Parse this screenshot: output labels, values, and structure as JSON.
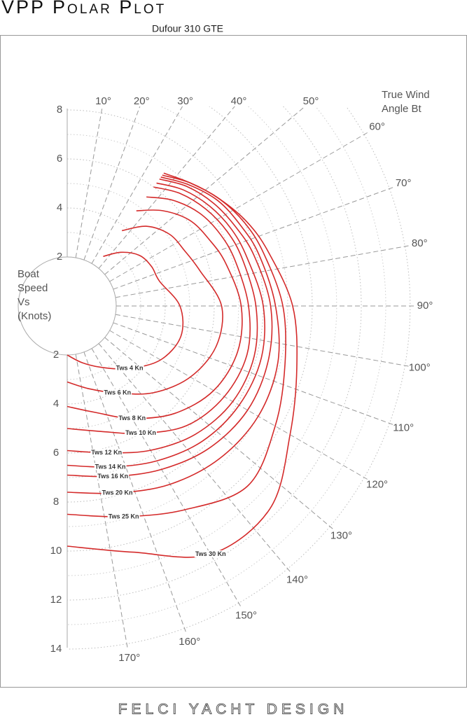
{
  "chart_data": {
    "type": "polar",
    "title": "VPP Polar Plot",
    "subtitle": "Dufour 310 GTE",
    "y_label": [
      "Boat",
      "Speed",
      "Vs",
      "(Knots)"
    ],
    "angle_label": [
      "True Wind",
      "Angle Bt"
    ],
    "footer": "FELCI YACHT DESIGN",
    "rlim": [
      0,
      14
    ],
    "rticks_up": [
      2,
      4,
      6,
      8
    ],
    "rticks_down": [
      2,
      4,
      6,
      8,
      10,
      12,
      14
    ],
    "angle_ticks": [
      {
        "value": 10,
        "label": "10°"
      },
      {
        "value": 20,
        "label": "20°"
      },
      {
        "value": 30,
        "label": "30°"
      },
      {
        "value": 40,
        "label": "40°"
      },
      {
        "value": 50,
        "label": "50°"
      },
      {
        "value": 60,
        "label": "60°"
      },
      {
        "value": 70,
        "label": "70°"
      },
      {
        "value": 80,
        "label": "80°"
      },
      {
        "value": 90,
        "label": "90°"
      },
      {
        "value": 100,
        "label": "100°"
      },
      {
        "value": 110,
        "label": "110°"
      },
      {
        "value": 120,
        "label": "120°"
      },
      {
        "value": 130,
        "label": "130°"
      },
      {
        "value": 140,
        "label": "140°"
      },
      {
        "value": 150,
        "label": "150°"
      },
      {
        "value": 160,
        "label": "160°"
      },
      {
        "value": 170,
        "label": "170°"
      }
    ],
    "series": [
      {
        "name": "Tws 4 Kn",
        "color": "#d42a2a",
        "x": [
          36,
          45,
          55,
          65,
          75,
          90,
          105,
          120,
          135,
          150,
          165,
          180
        ],
        "values": [
          2.5,
          3.1,
          3.6,
          3.8,
          3.9,
          4.6,
          4.8,
          4.4,
          3.6,
          2.9,
          2.4,
          2.0
        ]
      },
      {
        "name": "Tws 6 Kn",
        "color": "#d42a2a",
        "x": [
          36,
          45,
          55,
          65,
          75,
          90,
          105,
          120,
          135,
          150,
          165,
          180
        ],
        "values": [
          3.8,
          4.6,
          5.1,
          5.3,
          5.6,
          6.3,
          6.3,
          5.8,
          5.0,
          4.1,
          3.5,
          3.1
        ]
      },
      {
        "name": "Tws 8 Kn",
        "color": "#d42a2a",
        "x": [
          36,
          45,
          55,
          65,
          75,
          90,
          105,
          120,
          135,
          150,
          165,
          180
        ],
        "values": [
          4.8,
          5.5,
          6.1,
          6.4,
          6.7,
          7.1,
          7.2,
          6.9,
          6.2,
          5.3,
          4.5,
          4.1
        ]
      },
      {
        "name": "Tws 10 Kn",
        "color": "#d42a2a",
        "x": [
          36,
          45,
          55,
          65,
          75,
          90,
          105,
          120,
          135,
          150,
          165,
          180
        ],
        "values": [
          5.5,
          6.1,
          6.6,
          6.9,
          7.1,
          7.4,
          7.6,
          7.4,
          6.9,
          6.0,
          5.3,
          5.0
        ]
      },
      {
        "name": "Tws 12 Kn",
        "color": "#d42a2a",
        "x": [
          36,
          45,
          55,
          65,
          75,
          90,
          105,
          120,
          135,
          150,
          165,
          180
        ],
        "values": [
          6.0,
          6.5,
          6.9,
          7.2,
          7.4,
          7.7,
          7.9,
          7.8,
          7.4,
          6.8,
          6.2,
          5.9
        ]
      },
      {
        "name": "Tws 14 Kn",
        "color": "#d42a2a",
        "x": [
          36,
          45,
          55,
          65,
          75,
          90,
          105,
          120,
          135,
          150,
          165,
          180
        ],
        "values": [
          6.2,
          6.7,
          7.1,
          7.4,
          7.6,
          8.0,
          8.2,
          8.1,
          7.8,
          7.3,
          6.8,
          6.5
        ]
      },
      {
        "name": "Tws 16 Kn",
        "color": "#d42a2a",
        "x": [
          36,
          45,
          55,
          65,
          75,
          90,
          105,
          120,
          135,
          150,
          165,
          180
        ],
        "values": [
          6.4,
          6.9,
          7.3,
          7.6,
          7.9,
          8.3,
          8.5,
          8.5,
          8.2,
          7.7,
          7.2,
          6.9
        ]
      },
      {
        "name": "Tws 20 Kn",
        "color": "#d42a2a",
        "x": [
          36,
          45,
          55,
          65,
          75,
          90,
          105,
          120,
          135,
          150,
          165,
          180
        ],
        "values": [
          6.5,
          7.0,
          7.5,
          7.8,
          8.1,
          8.5,
          8.9,
          9.0,
          8.8,
          8.4,
          7.9,
          7.6
        ]
      },
      {
        "name": "Tws 25 Kn",
        "color": "#d42a2a",
        "x": [
          36,
          45,
          55,
          65,
          75,
          90,
          105,
          120,
          135,
          150,
          165,
          180
        ],
        "values": [
          6.7,
          7.1,
          7.6,
          8.0,
          8.3,
          8.8,
          9.2,
          9.8,
          10.4,
          9.6,
          8.9,
          8.5
        ]
      },
      {
        "name": "Tws 30 Kn",
        "color": "#d42a2a",
        "x": [
          36,
          45,
          55,
          65,
          75,
          90,
          105,
          120,
          135,
          150,
          165,
          180
        ],
        "values": [
          6.6,
          7.1,
          7.6,
          8.1,
          8.5,
          9.2,
          9.7,
          10.5,
          11.7,
          11.7,
          10.4,
          9.8
        ]
      }
    ]
  }
}
